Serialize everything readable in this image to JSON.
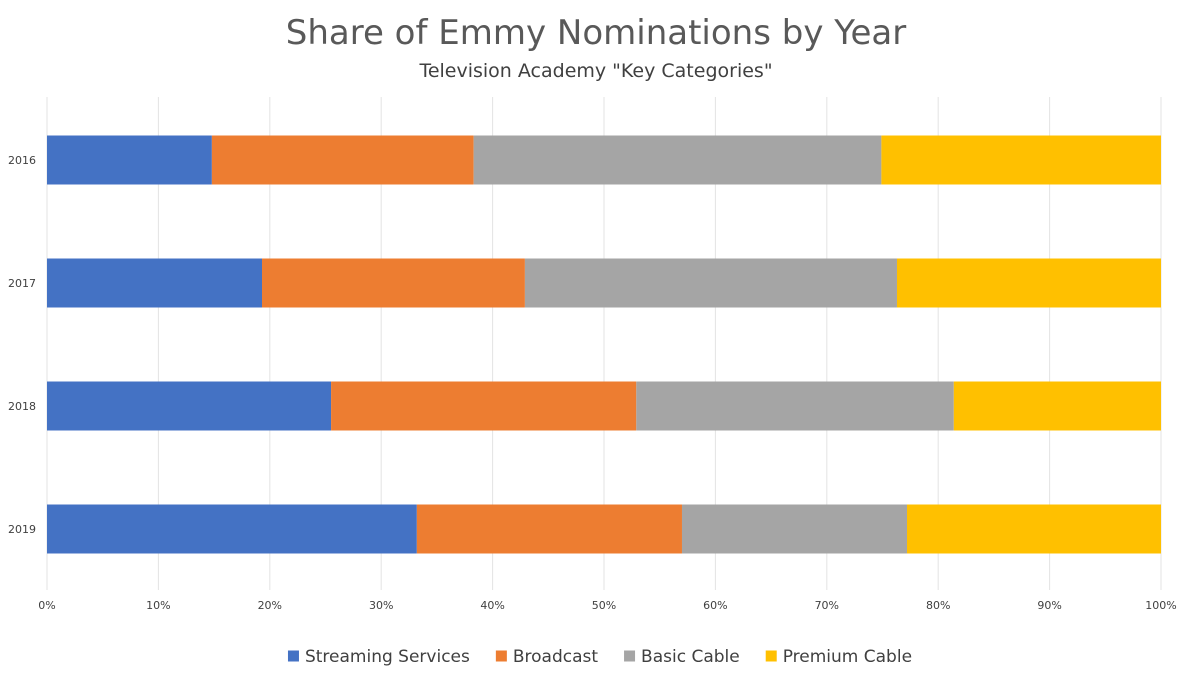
{
  "chart_data": {
    "type": "bar",
    "orientation": "horizontal",
    "stacked": "percent",
    "title": "Share of Emmy Nominations by Year",
    "subtitle": "Television Academy \"Key Categories\"",
    "categories": [
      "2016",
      "2017",
      "2018",
      "2019"
    ],
    "series": [
      {
        "name": "Streaming Services",
        "color": "#4472C4",
        "values": [
          14.8,
          19.3,
          25.5,
          33.2
        ]
      },
      {
        "name": "Broadcast",
        "color": "#ED7D31",
        "values": [
          23.5,
          23.6,
          27.4,
          23.8
        ]
      },
      {
        "name": "Basic Cable",
        "color": "#A5A5A5",
        "values": [
          36.6,
          33.4,
          28.5,
          20.2
        ]
      },
      {
        "name": "Premium Cable",
        "color": "#FFC000",
        "values": [
          25.1,
          23.7,
          18.6,
          22.8
        ]
      }
    ],
    "xlim": [
      0,
      100
    ],
    "x_ticks": [
      "0%",
      "10%",
      "20%",
      "30%",
      "40%",
      "50%",
      "60%",
      "70%",
      "80%",
      "90%",
      "100%"
    ],
    "grid": true,
    "legend_position": "bottom"
  }
}
